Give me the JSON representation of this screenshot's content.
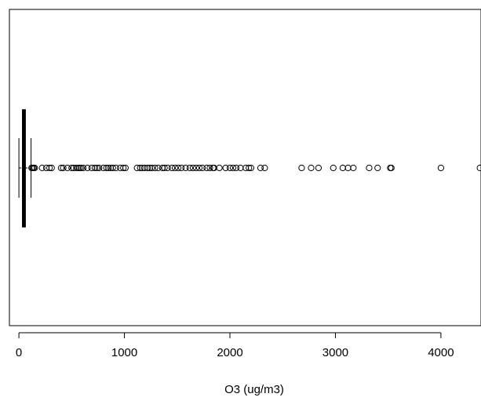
{
  "chart_data": {
    "type": "boxplot",
    "orientation": "horizontal",
    "xlabel": "O3 (ug/m3)",
    "xlim": [
      -90,
      4380
    ],
    "xticks": [
      0,
      1000,
      2000,
      3000,
      4000
    ],
    "xtick_labels": [
      "0",
      "1000",
      "2000",
      "3000",
      "4000"
    ],
    "box": {
      "whisker_low": 0,
      "q1": 35,
      "median": 45,
      "q3": 60,
      "whisker_high": 115
    },
    "outliers": [
      120,
      130,
      140,
      150,
      220,
      260,
      290,
      310,
      400,
      420,
      460,
      500,
      520,
      545,
      560,
      575,
      590,
      610,
      650,
      690,
      720,
      740,
      760,
      800,
      830,
      850,
      870,
      890,
      920,
      960,
      990,
      1010,
      1120,
      1150,
      1170,
      1190,
      1220,
      1240,
      1260,
      1290,
      1320,
      1360,
      1380,
      1410,
      1450,
      1480,
      1510,
      1540,
      1580,
      1620,
      1650,
      1680,
      1710,
      1740,
      1780,
      1810,
      1840,
      1850,
      1900,
      1960,
      2000,
      2030,
      2060,
      2100,
      2150,
      2180,
      2200,
      2290,
      2330,
      2680,
      2770,
      2840,
      2980,
      3070,
      3120,
      3170,
      3320,
      3400,
      3520,
      3530,
      4000,
      4370
    ],
    "grid": false,
    "frame": true
  }
}
